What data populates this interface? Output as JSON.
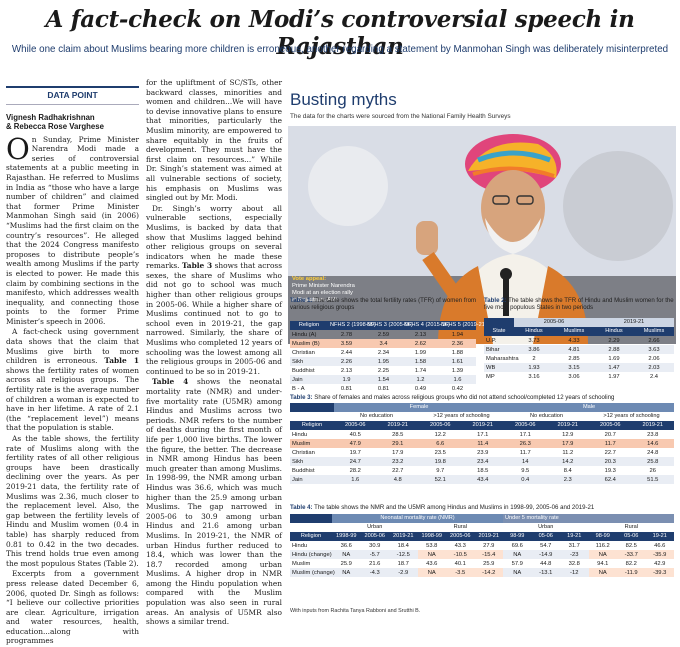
{
  "headline": "A fact-check on Modi’s controversial speech in Rajasthan",
  "subheadline": "While one claim about Muslims bearing more children is erroneous, another regarding a statement by Manmohan Singh was deliberately misinterpreted",
  "left": {
    "section_label": "DATA POINT",
    "byline_1": "Vignesh Radhakrishnan",
    "byline_2": "& Rebecca Rose Varghese",
    "dropcap": "O",
    "col1_p1": "n Sunday, Prime Minister Narendra Modi made a series of controversial statements at a public meeting in Rajasthan. He referred to Muslims in India as “those who have a large number of children” and claimed that former Prime Minister Manmohan Singh said (in 2006) “Muslims had the first claim on the country’s resources”. He alleged that the 2024 Congress manifesto proposes to distribute people’s wealth among Muslims if the party is elected to power. He made this claim by combining sections in the manifesto, which addresses wealth inequality, and connecting those points to the former Prime Minister’s speech in 2006.",
    "col1_p2_a": "A fact-check using government data shows that the claim that Muslims give birth to more children is erroneous. ",
    "col1_p2_ref": "Table 1",
    "col1_p2_b": " shows the fertility rates of women across all religious groups. The fertility rate is the average number of children a woman is expected to have in her lifetime. A rate of 2.1 (the “replacement level”) means that the population is stable.",
    "col1_p3": "As the table shows, the fertility rate of Muslims along with the fertility rates of all other religious groups have been drastically declining over the years. As per 2019-21 data, the fertility rate of Muslims was 2.36, much closer to the replacement level. Also, the gap between the fertility levels of Hindu and Muslim women (0.4 in table) has sharply reduced from 0.81 to 0.42 in the two decades. This trend holds true even among the most populous States (Table 2).",
    "col1_p4": "Excerpts from a government press release dated December 6, 2006, quoted Dr. Singh as follows: “I believe our collective priorities are clear. Agriculture, irrigation and water resources, health, education...along with programmes",
    "col2_p1": "for the upliftment of SC/STs, other backward classes, minorities and women and children...We will have to devise innovative plans to ensure that minorities, particularly the Muslim minority, are empowered to share equitably in the fruits of development. They must have the first claim on resources...” While Dr. Singh’s statement was aimed at all vulnerable sections of society, his emphasis on Muslims was singled out by Mr. Modi.",
    "col2_p2_a": "Dr. Singh’s worry about all vulnerable sections, especially Muslims, is backed by data that show that Muslims lagged behind other religious groups on several indicators when he made these remarks. ",
    "col2_p2_ref": "Table 3",
    "col2_p2_b": " shows that across sexes, the share of Muslims who did not go to school was much higher than other religious groups in 2005-06. While a higher share of Muslims continued not to go to school even in 2019-21, the gap narrowed. Similarly, the share of Muslims who completed 12 years of schooling was the lowest among all the religious groups in 2005-06 and continued to be so in 2019-21.",
    "col2_p3_ref": "Table 4",
    "col2_p3_b": " shows the neonatal mortality rate (NMR) and under-five mortality rate (U5MR) among Hindus and Muslims across two periods. NMR refers to the number of deaths during the first month of life per 1,000 live births. The lower the figure, the better. The decrease in NMR among Hindus has been much greater than among Muslims. In 1998-99, the NMR among urban Hindus was 36.6, which was much higher than the 25.9 among urban Muslims. The gap narrowed in 2005-06 to 30.9 among urban Hindus and 21.6 among urban Muslims. In 2019-21, the NMR of urban Hindus further reduced to 18.4, which was lower than the 18.7 recorded among urban Muslims. A higher drop in NMR among the Hindu population when compared with the Muslim population was also seen in rural areas. An analysis of U5MR also shows a similar trend."
  },
  "right": {
    "title": "Busting myths",
    "subtitle": "The data for the charts were sourced from the National Family Health Surveys",
    "caption_head": "Vote appeal:",
    "caption_body": "Prime Minister Narendra Modi at an election rally in Rajasthan. ANI",
    "table1": {
      "title_num": "Table 1:",
      "title": " The table shows the total fertility rates (TFR) of women from various religious groups",
      "headers": [
        "Religion",
        "NFHS 2 (1998-99)",
        "NFHS 3 (2005-06)",
        "NFHS 4 (2015-16)",
        "NFHS 5 (2019-21)"
      ],
      "rows": [
        [
          "Hindu (A)",
          "2.78",
          "2.59",
          "2.13",
          "1.94"
        ],
        [
          "Muslim (B)",
          "3.59",
          "3.4",
          "2.62",
          "2.36"
        ],
        [
          "Christian",
          "2.44",
          "2.34",
          "1.99",
          "1.88"
        ],
        [
          "Sikh",
          "2.26",
          "1.95",
          "1.58",
          "1.61"
        ],
        [
          "Buddhist",
          "2.13",
          "2.25",
          "1.74",
          "1.39"
        ],
        [
          "Jain",
          "1.9",
          "1.54",
          "1.2",
          "1.6"
        ],
        [
          "B - A",
          "0.81",
          "0.81",
          "0.49",
          "0.42"
        ]
      ]
    },
    "table2": {
      "title_num": "Table 2:",
      "title": " The table shows the TFR of Hindu and Muslim women for the five most populous States in two periods",
      "period_1": "2005-06",
      "period_2": "2019-21",
      "headers": [
        "State",
        "Hindus",
        "Muslims",
        "Hindus",
        "Muslims"
      ],
      "rows": [
        [
          "U.P.",
          "3.73",
          "4.33",
          "2.29",
          "2.66"
        ],
        [
          "Bihar",
          "3.86",
          "4.81",
          "2.88",
          "3.63"
        ],
        [
          "Maharashtra",
          "2",
          "2.85",
          "1.69",
          "2.06"
        ],
        [
          "WB",
          "1.93",
          "3.15",
          "1.47",
          "2.03"
        ],
        [
          "MP",
          "3.16",
          "3.06",
          "1.97",
          "2.4"
        ]
      ]
    },
    "table3": {
      "title_num": "Table 3:",
      "title": " Share of females and males across religious groups who did not attend school/completed 12 years of schooling",
      "female": "Female",
      "male": "Male",
      "no_edu": "No education",
      "twelve": ">12 years of schooling",
      "headers": [
        "Religion",
        "2005-06",
        "2019-21",
        "2005-06",
        "2019-21",
        "2005-06",
        "2019-21",
        "2005-06",
        "2019-21"
      ],
      "rows": [
        [
          "Hindu",
          "40.5",
          "28.5",
          "12.2",
          "17.1",
          "17.1",
          "12.9",
          "20.7",
          "23.8"
        ],
        [
          "Muslim",
          "47.9",
          "29.1",
          "6.6",
          "11.4",
          "26.3",
          "17.9",
          "11.7",
          "14.6"
        ],
        [
          "Christian",
          "19.7",
          "17.9",
          "23.5",
          "23.9",
          "11.7",
          "11.2",
          "22.7",
          "24.8"
        ],
        [
          "Sikh",
          "24.7",
          "23.2",
          "19.8",
          "23.4",
          "14",
          "14.2",
          "20.3",
          "25.8"
        ],
        [
          "Buddhist",
          "28.2",
          "22.7",
          "9.7",
          "18.5",
          "9.5",
          "8.4",
          "19.3",
          "26"
        ],
        [
          "Jain",
          "1.6",
          "4.8",
          "52.1",
          "43.4",
          "0.4",
          "2.3",
          "62.4",
          "51.5"
        ]
      ]
    },
    "table4": {
      "title_num": "Table 4:",
      "title": " The table shows the NMR and the U5MR among Hindus and Muslims in 1998-99, 2005-06 and 2019-21",
      "nmr": "Neonatal mortality rate (NMR)",
      "u5mr": "Under 5 mortality rate",
      "urban": "Urban",
      "rural": "Rural",
      "headers": [
        "Religion",
        "1998-99",
        "2005-06",
        "2019-21",
        "1998-99",
        "2005-06",
        "2019-21",
        "98-99",
        "05-06",
        "19-21",
        "98-99",
        "05-06",
        "19-21"
      ],
      "rows": [
        [
          "Hindu",
          "36.6",
          "30.9",
          "18.4",
          "53.8",
          "43.3",
          "27.9",
          "69.6",
          "54.7",
          "31.7",
          "116.2",
          "82.5",
          "46.6"
        ],
        [
          "Hindu (change)",
          "NA",
          "-5.7",
          "-12.5",
          "NA",
          "-10.5",
          "-15.4",
          "NA",
          "-14.9",
          "-23",
          "NA",
          "-33.7",
          "-35.9"
        ],
        [
          "Muslim",
          "25.9",
          "21.6",
          "18.7",
          "43.6",
          "40.1",
          "25.9",
          "57.9",
          "44.8",
          "32.8",
          "94.1",
          "82.2",
          "42.9"
        ],
        [
          "Muslim (change)",
          "NA",
          "-4.3",
          "-2.9",
          "NA",
          "-3.5",
          "-14.2",
          "NA",
          "-13.1",
          "-12",
          "NA",
          "-11.9",
          "-39.3"
        ]
      ]
    },
    "footnote": "With inputs from Rachita Tanya Rabboni and Srutthi B."
  }
}
